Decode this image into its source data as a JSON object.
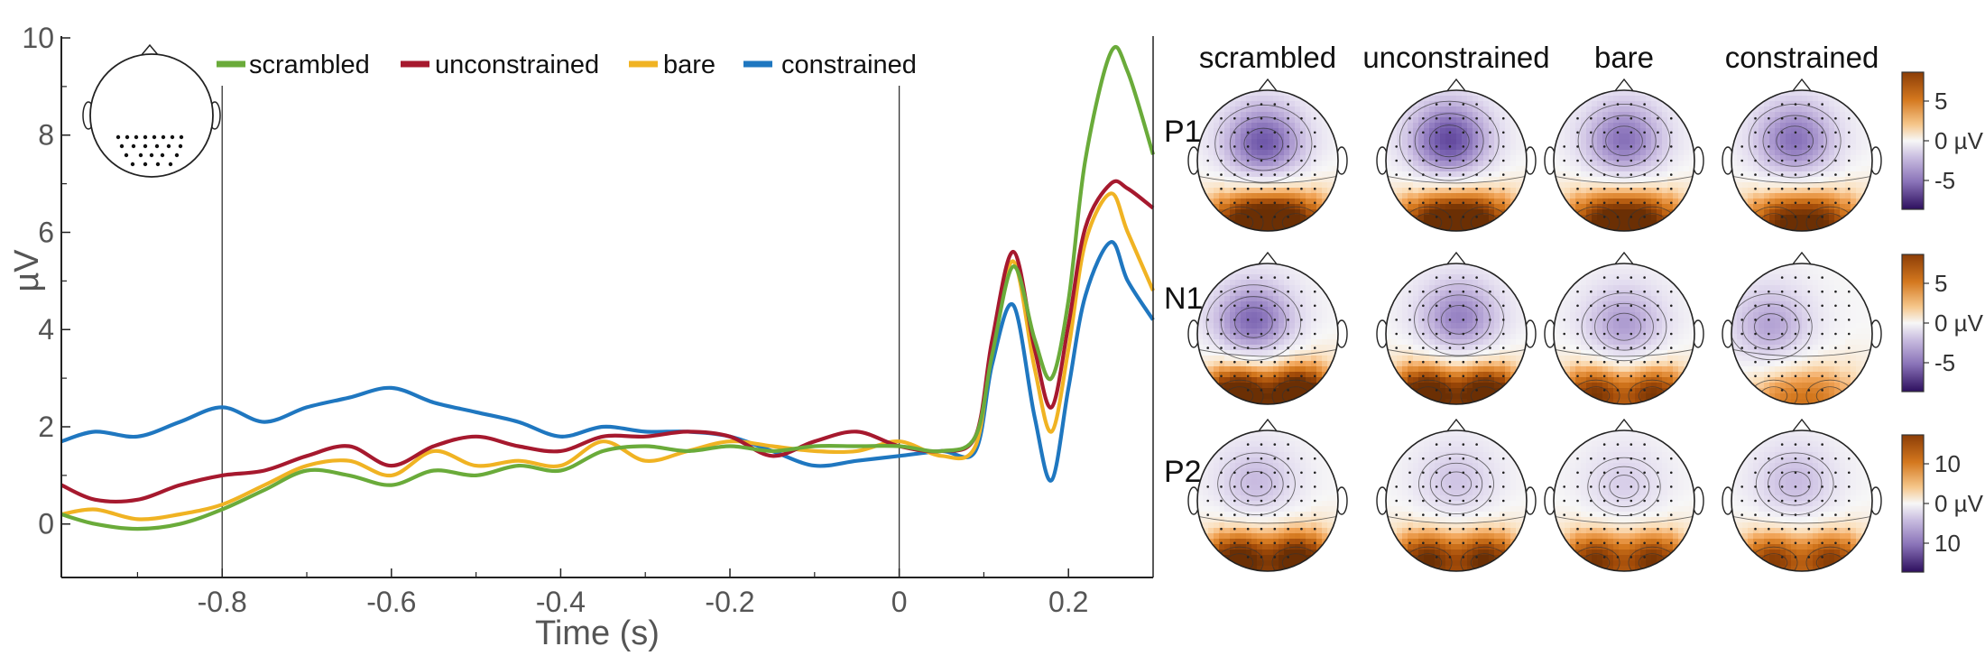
{
  "chart_data": [
    {
      "type": "line",
      "xlabel": "Time (s)",
      "ylabel": "µV",
      "xlim": [
        -0.99,
        0.3
      ],
      "ylim": [
        -1.1,
        10
      ],
      "xticks": [
        -0.8,
        -0.6,
        -0.4,
        -0.2,
        0,
        0.2
      ],
      "xtick_labels": [
        "-0.8",
        "-0.6",
        "-0.4",
        "-0.2",
        "0",
        "0.2"
      ],
      "yticks": [
        0,
        2,
        4,
        6,
        8,
        10
      ],
      "ytick_labels": [
        "0",
        "2",
        "4",
        "6",
        "8",
        "10"
      ],
      "vlines": [
        -0.8,
        0
      ],
      "legend_position": "top",
      "inset": "scalp map with occipital electrode cluster",
      "x": [
        -0.99,
        -0.95,
        -0.9,
        -0.85,
        -0.8,
        -0.75,
        -0.7,
        -0.65,
        -0.6,
        -0.55,
        -0.5,
        -0.45,
        -0.4,
        -0.35,
        -0.3,
        -0.25,
        -0.2,
        -0.15,
        -0.1,
        -0.05,
        0,
        0.05,
        0.09,
        0.11,
        0.135,
        0.16,
        0.18,
        0.2,
        0.22,
        0.25,
        0.27,
        0.3
      ],
      "series": [
        {
          "name": "scrambled",
          "color": "#6aab3a",
          "values": [
            0.2,
            0.0,
            -0.1,
            0.0,
            0.3,
            0.7,
            1.1,
            1.0,
            0.8,
            1.1,
            1.0,
            1.2,
            1.1,
            1.5,
            1.6,
            1.5,
            1.6,
            1.5,
            1.6,
            1.6,
            1.6,
            1.5,
            1.8,
            3.5,
            5.3,
            3.8,
            3.0,
            4.6,
            7.5,
            9.7,
            9.3,
            7.6
          ]
        },
        {
          "name": "unconstrained",
          "color": "#a6192e",
          "values": [
            0.8,
            0.5,
            0.5,
            0.8,
            1.0,
            1.1,
            1.4,
            1.6,
            1.2,
            1.6,
            1.8,
            1.6,
            1.5,
            1.8,
            1.8,
            1.9,
            1.8,
            1.4,
            1.7,
            1.9,
            1.6,
            1.5,
            1.8,
            3.8,
            5.6,
            3.6,
            2.4,
            4.1,
            6.1,
            7.0,
            6.9,
            6.5
          ]
        },
        {
          "name": "bare",
          "color": "#f0b323",
          "values": [
            0.2,
            0.3,
            0.1,
            0.2,
            0.4,
            0.8,
            1.2,
            1.3,
            1.0,
            1.5,
            1.2,
            1.3,
            1.2,
            1.7,
            1.3,
            1.5,
            1.7,
            1.6,
            1.5,
            1.5,
            1.7,
            1.4,
            1.6,
            3.7,
            5.4,
            3.2,
            1.9,
            3.6,
            5.8,
            6.8,
            6.0,
            4.8
          ]
        },
        {
          "name": "constrained",
          "color": "#1f77c0",
          "values": [
            1.7,
            1.9,
            1.8,
            2.1,
            2.4,
            2.1,
            2.4,
            2.6,
            2.8,
            2.5,
            2.3,
            2.1,
            1.8,
            2.0,
            1.9,
            1.9,
            1.8,
            1.5,
            1.2,
            1.3,
            1.4,
            1.5,
            1.5,
            3.3,
            4.5,
            2.2,
            0.9,
            2.8,
            4.7,
            5.8,
            5.0,
            4.2
          ]
        }
      ]
    },
    {
      "type": "heatmap",
      "description": "scalp topographies",
      "conditions": [
        "scrambled",
        "unconstrained",
        "bare",
        "constrained"
      ],
      "rows": [
        "P1",
        "N1",
        "P2"
      ],
      "colorbars": [
        {
          "tick_labels": [
            "5",
            "0 µV",
            "-5"
          ],
          "range": [
            -7,
            7
          ]
        },
        {
          "tick_labels": [
            "5",
            "0 µV",
            "-5"
          ],
          "range": [
            -6,
            6
          ]
        },
        {
          "tick_labels": [
            "10",
            "0 µV",
            "10"
          ],
          "range": [
            -13,
            13
          ]
        }
      ],
      "cells": [
        {
          "row": 0,
          "col": 0,
          "neg_amp": 0.8,
          "pos_amp": 1.0,
          "nx": 0.47,
          "ny": 0.38,
          "lat": false
        },
        {
          "row": 0,
          "col": 1,
          "neg_amp": 0.85,
          "pos_amp": 0.95,
          "nx": 0.45,
          "ny": 0.36,
          "lat": false
        },
        {
          "row": 0,
          "col": 2,
          "neg_amp": 0.7,
          "pos_amp": 0.9,
          "nx": 0.5,
          "ny": 0.36,
          "lat": false
        },
        {
          "row": 0,
          "col": 3,
          "neg_amp": 0.7,
          "pos_amp": 0.8,
          "nx": 0.45,
          "ny": 0.36,
          "lat": false
        },
        {
          "row": 1,
          "col": 0,
          "neg_amp": 0.75,
          "pos_amp": 1.0,
          "nx": 0.4,
          "ny": 0.42,
          "lat": true
        },
        {
          "row": 1,
          "col": 1,
          "neg_amp": 0.65,
          "pos_amp": 0.95,
          "nx": 0.52,
          "ny": 0.4,
          "lat": true
        },
        {
          "row": 1,
          "col": 2,
          "neg_amp": 0.55,
          "pos_amp": 0.75,
          "nx": 0.5,
          "ny": 0.45,
          "lat": true
        },
        {
          "row": 1,
          "col": 3,
          "neg_amp": 0.5,
          "pos_amp": 0.45,
          "nx": 0.28,
          "ny": 0.45,
          "lat": false
        },
        {
          "row": 2,
          "col": 0,
          "neg_amp": 0.4,
          "pos_amp": 0.9,
          "nx": 0.42,
          "ny": 0.38,
          "lat": true
        },
        {
          "row": 2,
          "col": 1,
          "neg_amp": 0.35,
          "pos_amp": 0.8,
          "nx": 0.5,
          "ny": 0.38,
          "lat": true
        },
        {
          "row": 2,
          "col": 2,
          "neg_amp": 0.3,
          "pos_amp": 0.75,
          "nx": 0.5,
          "ny": 0.4,
          "lat": true
        },
        {
          "row": 2,
          "col": 3,
          "neg_amp": 0.4,
          "pos_amp": 0.7,
          "nx": 0.45,
          "ny": 0.38,
          "lat": true
        }
      ]
    }
  ],
  "colors": {
    "positive": "#b35806",
    "negative": "#3f1e75",
    "neutral": "#f7f7f7",
    "axis": "#222222",
    "tick_text": "#555555"
  }
}
